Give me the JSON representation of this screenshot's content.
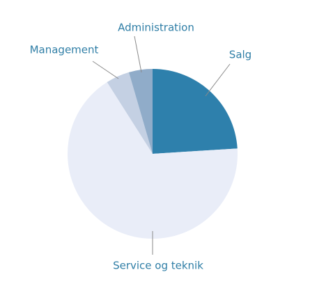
{
  "chart_data": {
    "type": "pie",
    "categories": [
      "Salg",
      "Service og teknik",
      "Management",
      "Administration"
    ],
    "values": [
      24,
      67,
      4.5,
      4.5
    ],
    "colors": [
      "#2e80ac",
      "#e9edf8",
      "#c4d0e3",
      "#90acc9"
    ]
  }
}
